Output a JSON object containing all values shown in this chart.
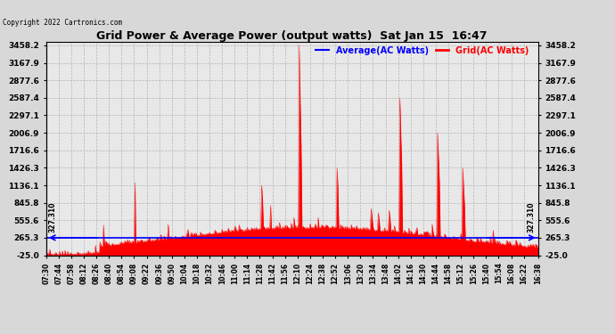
{
  "title": "Grid Power & Average Power (output watts)  Sat Jan 15  16:47",
  "copyright": "Copyright 2022 Cartronics.com",
  "legend_avg": "Average(AC Watts)",
  "legend_grid": "Grid(AC Watts)",
  "yticks": [
    3458.2,
    3167.9,
    2877.6,
    2587.4,
    2297.1,
    2006.9,
    1716.6,
    1426.3,
    1136.1,
    845.8,
    555.6,
    265.3,
    -25.0
  ],
  "ymin": -25.0,
  "ymax": 3458.2,
  "average_value": 265.3,
  "annotation_value": 327.31,
  "annotation_label": "327.310",
  "bg_color": "#d8d8d8",
  "plot_bg": "#e8e8e8",
  "grid_line_color": "#b0b0b0",
  "avg_line_color": "#0000ff",
  "grid_fill_color": "#ff0000",
  "title_color": "#000000",
  "copyright_color": "#000000",
  "legend_avg_color": "#0000ff",
  "legend_grid_color": "#ff0000",
  "time_start_minutes": 450,
  "time_end_minutes": 998,
  "xtick_minutes": [
    450,
    464,
    478,
    492,
    506,
    520,
    534,
    548,
    562,
    576,
    590,
    604,
    618,
    632,
    646,
    660,
    674,
    688,
    702,
    716,
    730,
    744,
    758,
    772,
    786,
    800,
    814,
    828,
    842,
    856,
    870,
    884,
    898,
    912,
    926,
    940,
    954,
    968,
    982,
    998
  ]
}
